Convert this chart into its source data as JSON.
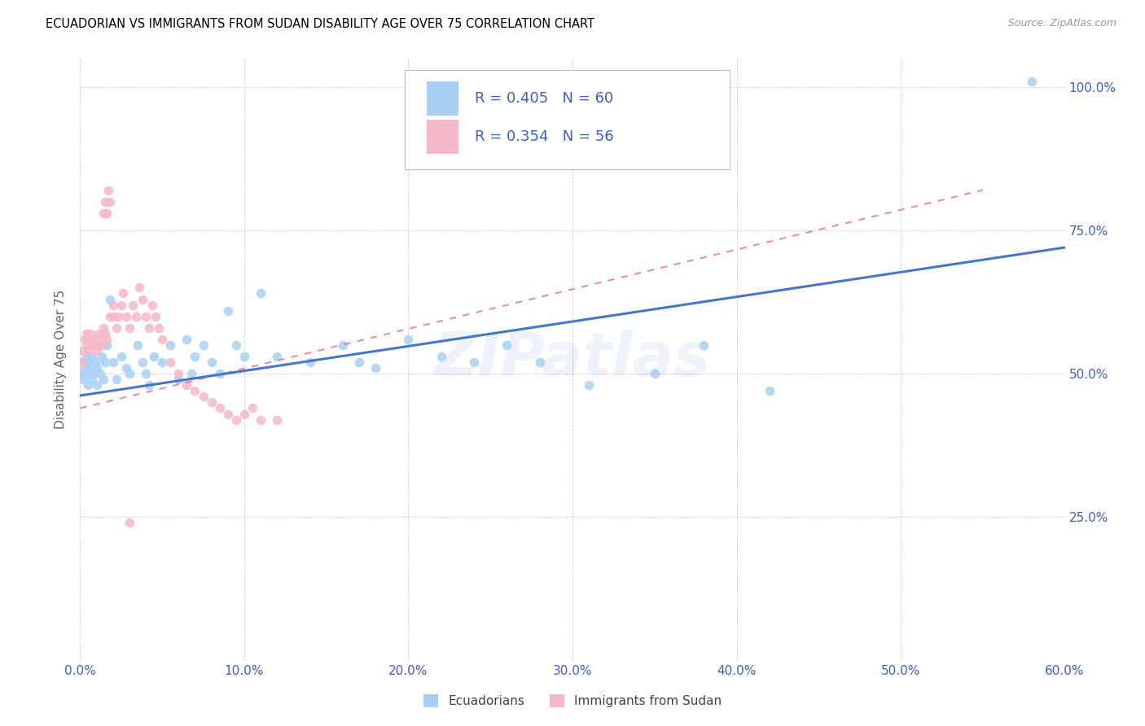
{
  "title": "ECUADORIAN VS IMMIGRANTS FROM SUDAN DISABILITY AGE OVER 75 CORRELATION CHART",
  "source": "Source: ZipAtlas.com",
  "ylabel_label": "Disability Age Over 75",
  "xlim": [
    0.0,
    0.6
  ],
  "ylim": [
    0.0,
    1.05
  ],
  "ytick_labels": [
    "",
    "25.0%",
    "50.0%",
    "75.0%",
    "100.0%"
  ],
  "ytick_values": [
    0.0,
    0.25,
    0.5,
    0.75,
    1.0
  ],
  "xtick_labels": [
    "0.0%",
    "10.0%",
    "20.0%",
    "30.0%",
    "40.0%",
    "50.0%",
    "60.0%"
  ],
  "xtick_values": [
    0.0,
    0.1,
    0.2,
    0.3,
    0.4,
    0.5,
    0.6
  ],
  "ecuadorians_color": "#a8d0f5",
  "sudan_color": "#f5b8c8",
  "ecuador_R": 0.405,
  "ecuador_N": 60,
  "sudan_R": 0.354,
  "sudan_N": 56,
  "watermark": "ZIPatlas",
  "blue_text_color": "#3a5fcd",
  "ecuador_line_color": "#4477cc",
  "sudan_line_color": "#e87090",
  "grid_color": "#d0d0d0",
  "ecuador_scatter_x": [
    0.001,
    0.002,
    0.002,
    0.003,
    0.004,
    0.004,
    0.005,
    0.005,
    0.006,
    0.007,
    0.007,
    0.008,
    0.009,
    0.01,
    0.01,
    0.011,
    0.012,
    0.013,
    0.014,
    0.015,
    0.016,
    0.018,
    0.02,
    0.022,
    0.025,
    0.028,
    0.03,
    0.035,
    0.038,
    0.04,
    0.042,
    0.045,
    0.05,
    0.055,
    0.06,
    0.065,
    0.068,
    0.07,
    0.075,
    0.08,
    0.085,
    0.09,
    0.095,
    0.1,
    0.11,
    0.12,
    0.14,
    0.16,
    0.17,
    0.18,
    0.2,
    0.22,
    0.24,
    0.26,
    0.28,
    0.31,
    0.35,
    0.38,
    0.42,
    0.58
  ],
  "ecuador_scatter_y": [
    0.5,
    0.52,
    0.49,
    0.51,
    0.5,
    0.53,
    0.48,
    0.52,
    0.51,
    0.49,
    0.53,
    0.5,
    0.52,
    0.51,
    0.48,
    0.55,
    0.5,
    0.53,
    0.49,
    0.52,
    0.55,
    0.63,
    0.52,
    0.49,
    0.53,
    0.51,
    0.5,
    0.55,
    0.52,
    0.5,
    0.48,
    0.53,
    0.52,
    0.55,
    0.49,
    0.56,
    0.5,
    0.53,
    0.55,
    0.52,
    0.5,
    0.61,
    0.55,
    0.53,
    0.64,
    0.53,
    0.52,
    0.55,
    0.52,
    0.51,
    0.56,
    0.53,
    0.52,
    0.55,
    0.52,
    0.48,
    0.5,
    0.55,
    0.47,
    1.01
  ],
  "sudan_scatter_x": [
    0.001,
    0.002,
    0.003,
    0.004,
    0.004,
    0.005,
    0.005,
    0.006,
    0.007,
    0.008,
    0.009,
    0.01,
    0.011,
    0.012,
    0.013,
    0.014,
    0.015,
    0.016,
    0.018,
    0.02,
    0.02,
    0.022,
    0.023,
    0.025,
    0.026,
    0.028,
    0.03,
    0.032,
    0.034,
    0.036,
    0.038,
    0.04,
    0.042,
    0.044,
    0.046,
    0.048,
    0.05,
    0.055,
    0.06,
    0.065,
    0.07,
    0.075,
    0.08,
    0.085,
    0.09,
    0.095,
    0.1,
    0.105,
    0.11,
    0.12,
    0.014,
    0.015,
    0.016,
    0.017,
    0.018,
    0.03
  ],
  "sudan_scatter_y": [
    0.52,
    0.54,
    0.56,
    0.55,
    0.57,
    0.54,
    0.56,
    0.57,
    0.55,
    0.56,
    0.55,
    0.54,
    0.57,
    0.56,
    0.55,
    0.58,
    0.57,
    0.56,
    0.6,
    0.6,
    0.62,
    0.58,
    0.6,
    0.62,
    0.64,
    0.6,
    0.58,
    0.62,
    0.6,
    0.65,
    0.63,
    0.6,
    0.58,
    0.62,
    0.6,
    0.58,
    0.56,
    0.52,
    0.5,
    0.48,
    0.47,
    0.46,
    0.45,
    0.44,
    0.43,
    0.42,
    0.43,
    0.44,
    0.42,
    0.42,
    0.78,
    0.8,
    0.78,
    0.82,
    0.8,
    0.24
  ],
  "ecuador_trendline_x": [
    0.0,
    0.6
  ],
  "ecuador_trendline_y": [
    0.462,
    0.72
  ],
  "sudan_trendline_x": [
    0.0,
    0.55
  ],
  "sudan_trendline_y": [
    0.44,
    0.82
  ]
}
